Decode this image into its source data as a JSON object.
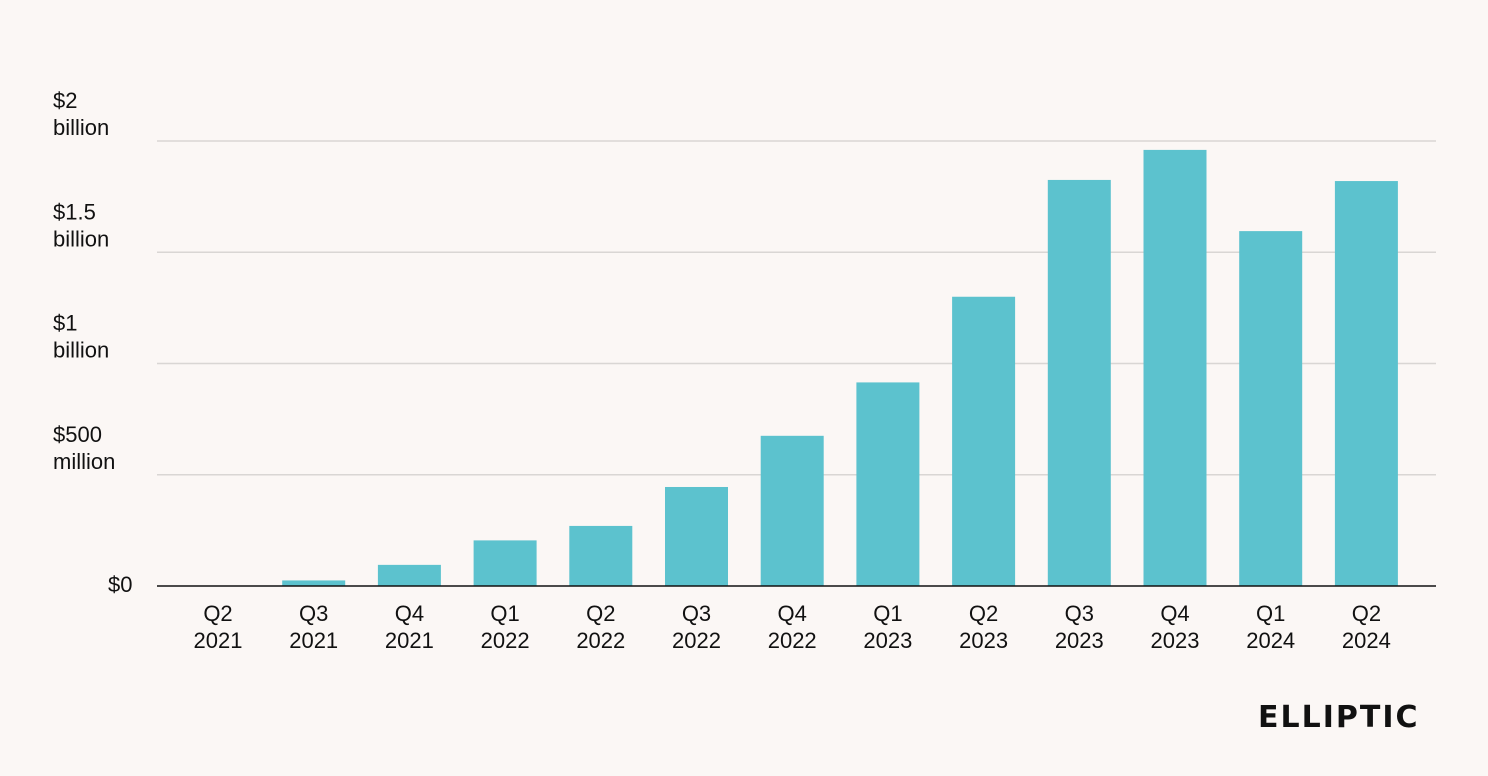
{
  "chart_data": {
    "type": "bar",
    "title": "",
    "xlabel": "",
    "ylabel": "",
    "categories": [
      [
        "Q2",
        "2021"
      ],
      [
        "Q3",
        "2021"
      ],
      [
        "Q4",
        "2021"
      ],
      [
        "Q1",
        "2022"
      ],
      [
        "Q2",
        "2022"
      ],
      [
        "Q3",
        "2022"
      ],
      [
        "Q4",
        "2022"
      ],
      [
        "Q1",
        "2023"
      ],
      [
        "Q2",
        "2023"
      ],
      [
        "Q3",
        "2023"
      ],
      [
        "Q4",
        "2023"
      ],
      [
        "Q1",
        "2024"
      ],
      [
        "Q2",
        "2024"
      ]
    ],
    "values": [
      0,
      25000000,
      95000000,
      205000000,
      270000000,
      445000000,
      675000000,
      915000000,
      1300000000,
      1825000000,
      1960000000,
      1595000000,
      1820000000
    ],
    "ylim": [
      0,
      2000000000
    ],
    "y_ticks": [
      {
        "value": 0,
        "label": [
          "$0"
        ]
      },
      {
        "value": 500000000,
        "label": [
          "$500",
          "million"
        ]
      },
      {
        "value": 1000000000,
        "label": [
          "$1",
          "billion"
        ]
      },
      {
        "value": 1500000000,
        "label": [
          "$1.5",
          "billion"
        ]
      },
      {
        "value": 2000000000,
        "label": [
          "$2",
          "billion"
        ]
      }
    ],
    "grid": true,
    "bar_color": "#5cc2ce",
    "grid_color": "#d9d6d4",
    "axis_color": "#111111"
  },
  "logo_text": "ELLIPTIC"
}
